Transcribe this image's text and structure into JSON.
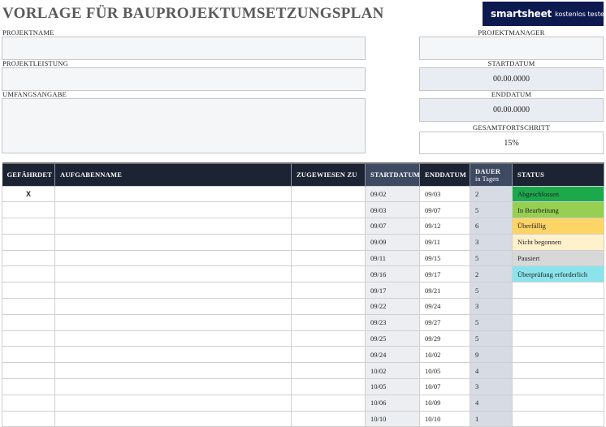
{
  "header": {
    "title": "VORLAGE FÜR BAUPROJEKTUMSETZUNGSPLAN",
    "logo_name": "smartsheet",
    "logo_sub": "kostenlos testen"
  },
  "project": {
    "name_label": "PROJEKTNAME",
    "name_value": "",
    "deliverable_label": "PROJEKTLEISTUNG",
    "deliverable_value": "",
    "scope_label": "UMFANGSANGABE",
    "scope_value": "",
    "manager_label": "PROJEKTMANAGER",
    "manager_value": "",
    "start_label": "STARTDATUM",
    "start_value": "00.00.0000",
    "end_label": "ENDDATUM",
    "end_value": "00.00.0000",
    "progress_label": "GESAMTFORTSCHRITT",
    "progress_value": "15%"
  },
  "table": {
    "columns": {
      "at_risk": "GEFÄHRDET",
      "task": "AUFGABENNAME",
      "assigned": "ZUGEWIESEN ZU",
      "start": "STARTDATUM",
      "end": "ENDDATUM",
      "duration": "DAUER",
      "duration_sub": "in Tagen",
      "status": "STATUS"
    },
    "rows": [
      {
        "at_risk": "X",
        "task": "",
        "assigned": "",
        "start": "09/02",
        "end": "09/03",
        "duration": "2",
        "status": "Abgeschlossen",
        "status_class": "st-done"
      },
      {
        "at_risk": "",
        "task": "",
        "assigned": "",
        "start": "09/03",
        "end": "09/07",
        "duration": "5",
        "status": "In Bearbeitung",
        "status_class": "st-prog"
      },
      {
        "at_risk": "",
        "task": "",
        "assigned": "",
        "start": "09/07",
        "end": "09/12",
        "duration": "6",
        "status": "Überfällig",
        "status_class": "st-late"
      },
      {
        "at_risk": "",
        "task": "",
        "assigned": "",
        "start": "09/09",
        "end": "09/11",
        "duration": "3",
        "status": "Nicht begonnen",
        "status_class": "st-not"
      },
      {
        "at_risk": "",
        "task": "",
        "assigned": "",
        "start": "09/11",
        "end": "09/15",
        "duration": "5",
        "status": "Pausiert",
        "status_class": "st-pause"
      },
      {
        "at_risk": "",
        "task": "",
        "assigned": "",
        "start": "09/16",
        "end": "09/17",
        "duration": "2",
        "status": "Überprüfung erforderlich",
        "status_class": "st-review"
      },
      {
        "at_risk": "",
        "task": "",
        "assigned": "",
        "start": "09/17",
        "end": "09/21",
        "duration": "5",
        "status": "",
        "status_class": ""
      },
      {
        "at_risk": "",
        "task": "",
        "assigned": "",
        "start": "09/22",
        "end": "09/24",
        "duration": "3",
        "status": "",
        "status_class": ""
      },
      {
        "at_risk": "",
        "task": "",
        "assigned": "",
        "start": "09/23",
        "end": "09/27",
        "duration": "5",
        "status": "",
        "status_class": ""
      },
      {
        "at_risk": "",
        "task": "",
        "assigned": "",
        "start": "09/25",
        "end": "09/29",
        "duration": "5",
        "status": "",
        "status_class": ""
      },
      {
        "at_risk": "",
        "task": "",
        "assigned": "",
        "start": "09/24",
        "end": "10/02",
        "duration": "9",
        "status": "",
        "status_class": ""
      },
      {
        "at_risk": "",
        "task": "",
        "assigned": "",
        "start": "10/02",
        "end": "10/05",
        "duration": "4",
        "status": "",
        "status_class": ""
      },
      {
        "at_risk": "",
        "task": "",
        "assigned": "",
        "start": "10/05",
        "end": "10/07",
        "duration": "3",
        "status": "",
        "status_class": ""
      },
      {
        "at_risk": "",
        "task": "",
        "assigned": "",
        "start": "10/06",
        "end": "10/09",
        "duration": "4",
        "status": "",
        "status_class": ""
      },
      {
        "at_risk": "",
        "task": "",
        "assigned": "",
        "start": "10/10",
        "end": "10/10",
        "duration": "1",
        "status": "",
        "status_class": ""
      }
    ]
  },
  "colors": {
    "header_dark": "#1c2333",
    "header_mid": "#3d4a62",
    "logo_bg": "#0d1a4f",
    "status_done": "#1ba94c",
    "status_progress": "#96cf52",
    "status_overdue": "#fdd466",
    "status_not_started": "#fff1cb",
    "status_paused": "#d8d8d8",
    "status_review": "#8be4ec"
  }
}
